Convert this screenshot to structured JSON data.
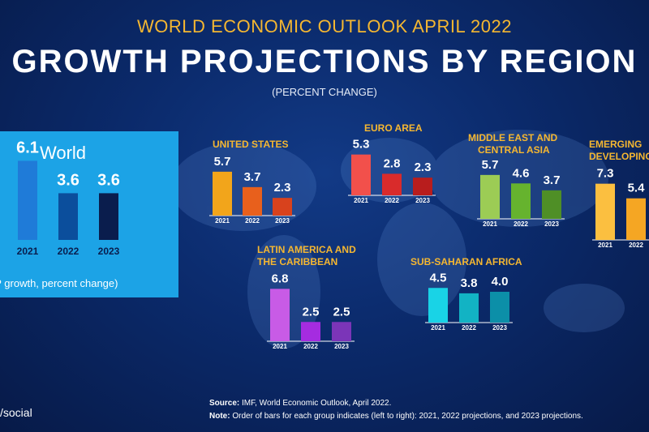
{
  "header": {
    "supertitle": "WORLD ECONOMIC OUTLOOK APRIL 2022",
    "title": "GROWTH PROJECTIONS BY REGION",
    "subtitle": "(PERCENT CHANGE)"
  },
  "world_panel": {
    "title": "World",
    "footer": "al GDP growth, percent change)"
  },
  "footer": {
    "source_label": "Source:",
    "source_text": "IMF, World Economic Outlook, April 2022.",
    "note_label": "Note:",
    "note_text": "Order of bars for each group indicates (left to right): 2021, 2022 projections, and 2023 projections.",
    "handle": "/social"
  },
  "chart_data": [
    {
      "type": "bar",
      "id": "world",
      "title": "World",
      "categories": [
        "2021",
        "2022",
        "2023"
      ],
      "values": [
        6.1,
        3.6,
        3.6
      ],
      "colors": [
        "#1f7bd8",
        "#0b4e9c",
        "#0a1d4d"
      ]
    },
    {
      "type": "bar",
      "id": "us",
      "title": "UNITED STATES",
      "categories": [
        "2021",
        "2022",
        "2023"
      ],
      "values": [
        5.7,
        3.7,
        2.3
      ],
      "colors": [
        "#f2a51b",
        "#e8601c",
        "#d8421d"
      ]
    },
    {
      "type": "bar",
      "id": "euro",
      "title": "EURO AREA",
      "categories": [
        "2021",
        "2022",
        "2023"
      ],
      "values": [
        5.3,
        2.8,
        2.3
      ],
      "colors": [
        "#f2504b",
        "#d92b2b",
        "#b81d1d"
      ]
    },
    {
      "type": "bar",
      "id": "meca",
      "title": "MIDDLE EAST AND CENTRAL ASIA",
      "title_lines": [
        "MIDDLE EAST AND",
        "CENTRAL ASIA"
      ],
      "categories": [
        "2021",
        "2022",
        "2023"
      ],
      "values": [
        5.7,
        4.6,
        3.7
      ],
      "colors": [
        "#9ccc55",
        "#66b32e",
        "#4f8f26"
      ]
    },
    {
      "type": "bar",
      "id": "emde",
      "title": "EMERGING DEVELOPING",
      "title_lines": [
        "EMERGING",
        "DEVELOPING"
      ],
      "categories": [
        "2021",
        "2022"
      ],
      "values": [
        7.3,
        5.4
      ],
      "colors": [
        "#fbbf40",
        "#f5a623"
      ]
    },
    {
      "type": "bar",
      "id": "lac",
      "title": "LATIN AMERICA AND THE CARIBBEAN",
      "title_lines": [
        "LATIN AMERICA AND",
        "THE CARIBBEAN"
      ],
      "categories": [
        "2021",
        "2022",
        "2023"
      ],
      "values": [
        6.8,
        2.5,
        2.5
      ],
      "colors": [
        "#c85be6",
        "#a52ce0",
        "#7b35b8"
      ]
    },
    {
      "type": "bar",
      "id": "ssa",
      "title": "SUB-SAHARAN AFRICA",
      "categories": [
        "2021",
        "2022",
        "2023"
      ],
      "values": [
        4.5,
        3.8,
        4.0
      ],
      "colors": [
        "#19d3e6",
        "#12b3c4",
        "#0c8fa8"
      ]
    }
  ]
}
